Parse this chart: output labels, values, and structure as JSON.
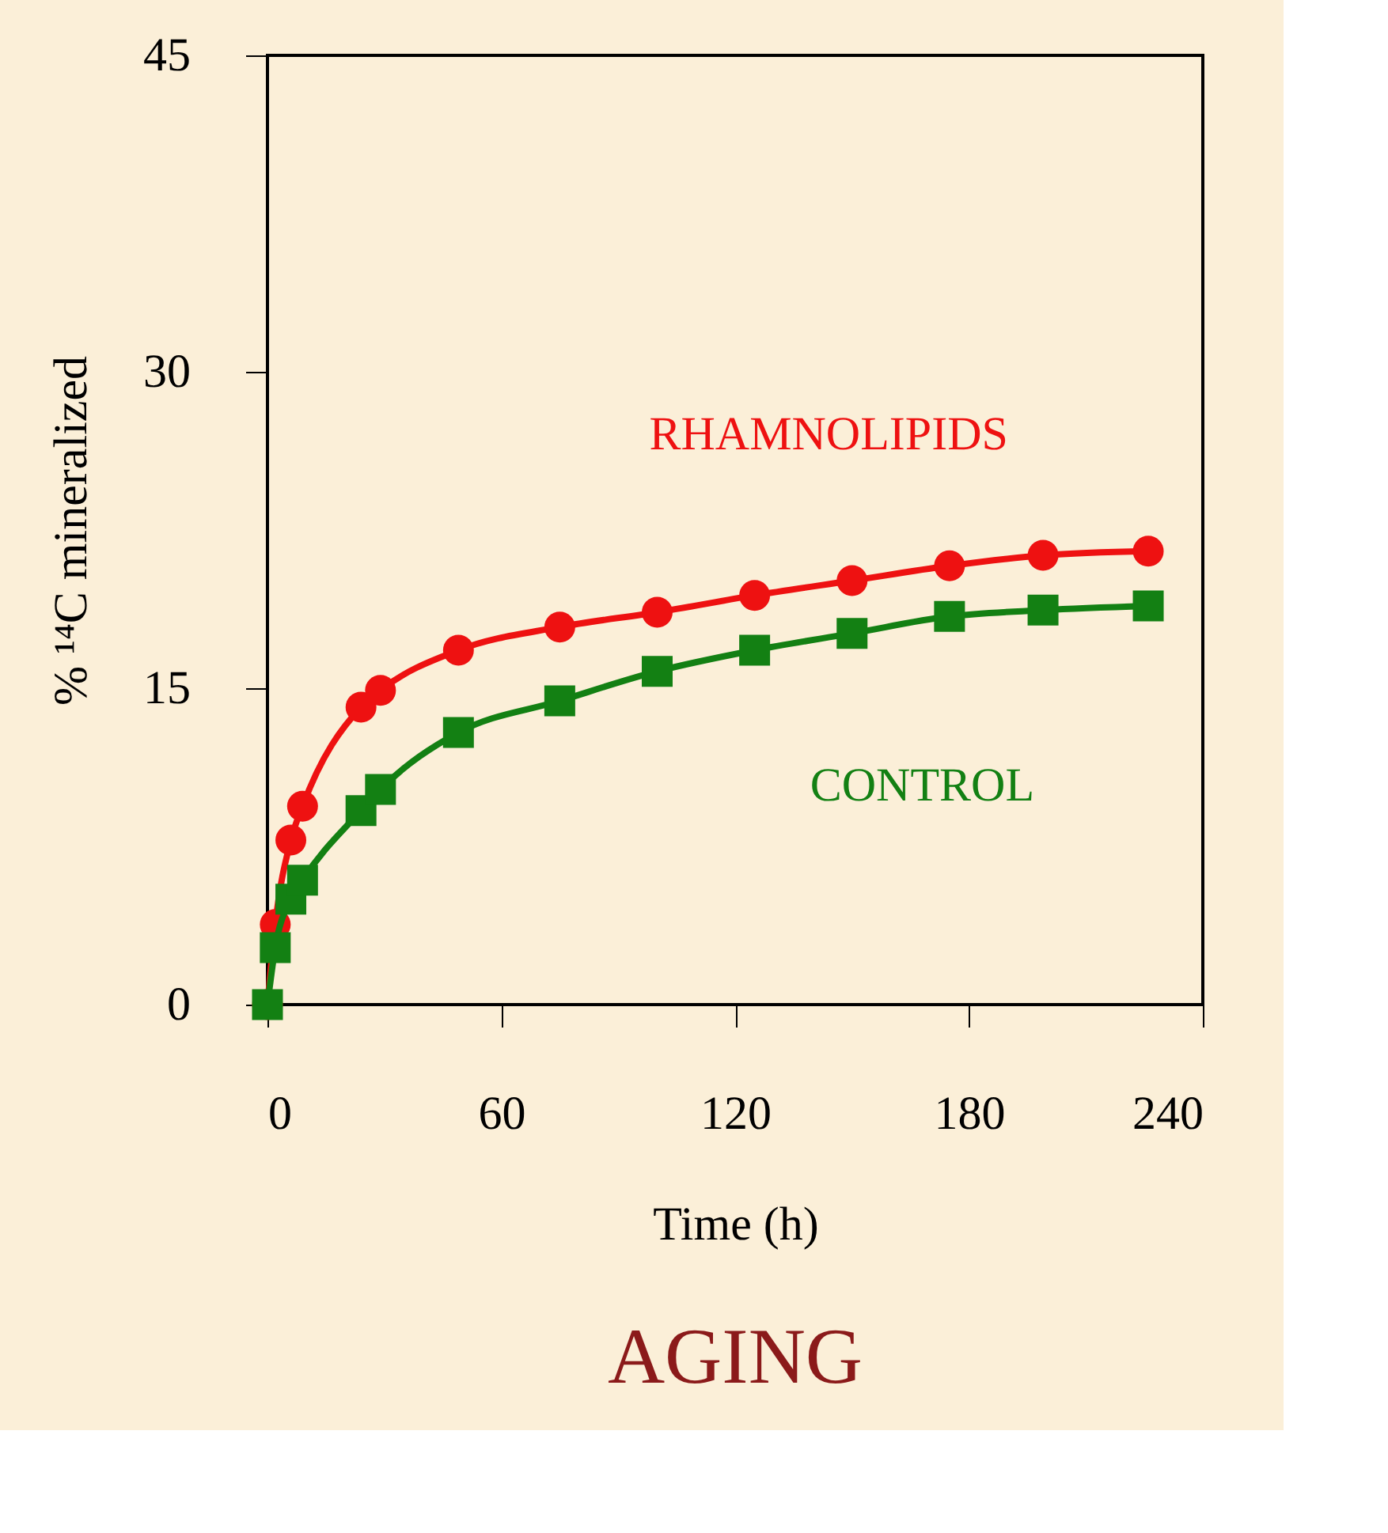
{
  "chart_data": {
    "type": "line",
    "title": "AGING",
    "xlabel": "Time (h)",
    "ylabel": "% ¹⁴C mineralized",
    "x": [
      0,
      2,
      6,
      9,
      24,
      29,
      49,
      75,
      100,
      125,
      150,
      175,
      199,
      226
    ],
    "series": [
      {
        "name": "RHAMNOLIPIDS",
        "color": "#ee1111",
        "marker": "circle",
        "values": [
          0,
          3.8,
          7.8,
          9.4,
          14.1,
          14.9,
          16.8,
          17.9,
          18.6,
          19.4,
          20.1,
          20.8,
          21.3,
          21.5
        ]
      },
      {
        "name": "CONTROL",
        "color": "#138013",
        "marker": "square",
        "values": [
          0,
          2.7,
          5.0,
          5.9,
          9.2,
          10.2,
          12.9,
          14.4,
          15.8,
          16.8,
          17.6,
          18.4,
          18.7,
          18.9
        ]
      }
    ],
    "xlim": [
      0,
      240
    ],
    "xticks": [
      0,
      60,
      120,
      180,
      240
    ],
    "ylim": [
      0,
      45
    ],
    "yticks": [
      0,
      15,
      30,
      45
    ],
    "grid": false,
    "legend": false,
    "line_style": "solid"
  }
}
